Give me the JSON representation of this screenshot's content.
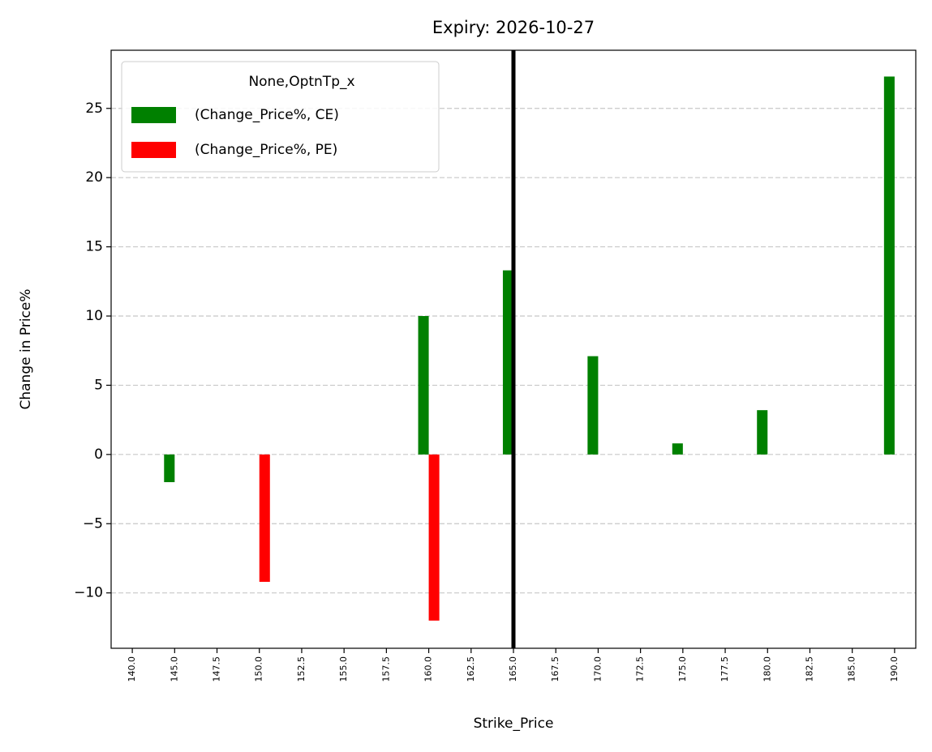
{
  "chart_data": {
    "type": "bar",
    "title": "Expiry: 2026-10-27",
    "x_label": "Strike_Price",
    "y_label": "Change in Price%",
    "categories": [
      "140.0",
      "145.0",
      "147.5",
      "150.0",
      "152.5",
      "155.0",
      "157.5",
      "160.0",
      "162.5",
      "165.0",
      "167.5",
      "170.0",
      "172.5",
      "175.0",
      "177.5",
      "180.0",
      "182.5",
      "185.0",
      "190.0"
    ],
    "series": [
      {
        "name": "(Change_Price%, CE)",
        "color": "#008000",
        "values": [
          null,
          -2.0,
          null,
          null,
          null,
          null,
          null,
          10.0,
          null,
          13.3,
          null,
          7.1,
          null,
          0.8,
          null,
          3.2,
          null,
          null,
          27.3
        ]
      },
      {
        "name": "(Change_Price%, PE)",
        "color": "#ff0000",
        "values": [
          null,
          null,
          null,
          -9.2,
          null,
          null,
          null,
          -12.0,
          null,
          null,
          null,
          null,
          null,
          null,
          null,
          null,
          null,
          null,
          null
        ]
      }
    ],
    "legend_title": "None,OptnTp_x",
    "legend": "upper left",
    "vline": "165.0",
    "ylim": [
      -14.0,
      29.2
    ],
    "yticks": [
      {
        "value": -10,
        "label": "−10"
      },
      {
        "value": -5,
        "label": "−5"
      },
      0,
      5,
      10,
      15,
      20,
      25
    ],
    "grid": true
  }
}
